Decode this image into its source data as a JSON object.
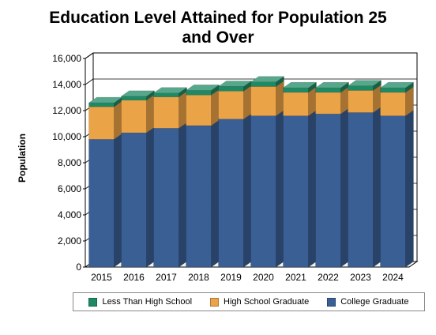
{
  "chart_data": {
    "type": "bar",
    "stacked": true,
    "three_d": true,
    "title_line1": "Education Level Attained for Population 25",
    "title_line2": "and Over",
    "xlabel": "",
    "ylabel": "Population",
    "ylim": [
      0,
      16000
    ],
    "yticks": [
      0,
      2000,
      4000,
      6000,
      8000,
      10000,
      12000,
      14000,
      16000
    ],
    "ytick_labels": [
      "0",
      "2,000",
      "4,000",
      "6,000",
      "8,000",
      "10,000",
      "12,000",
      "14,000",
      "16,000"
    ],
    "grid": true,
    "legend_position": "bottom",
    "categories": [
      "2015",
      "2016",
      "2017",
      "2018",
      "2019",
      "2020",
      "2021",
      "2022",
      "2023",
      "2024"
    ],
    "series": [
      {
        "name": "College Graduate",
        "color": "#3a5f95",
        "values": [
          9800,
          10300,
          10650,
          10850,
          11350,
          11600,
          11600,
          11750,
          11850,
          11600
        ]
      },
      {
        "name": "High School Graduate",
        "color": "#eba348",
        "values": [
          2500,
          2500,
          2400,
          2350,
          2150,
          2250,
          1800,
          1650,
          1700,
          1800
        ]
      },
      {
        "name": "Less Than High School",
        "color": "#1e8a64",
        "values": [
          300,
          300,
          300,
          350,
          350,
          350,
          350,
          350,
          350,
          350
        ]
      }
    ]
  },
  "legend": {
    "items": [
      {
        "label": "Less Than High School",
        "color": "#1e8a64"
      },
      {
        "label": "High School Graduate",
        "color": "#eba348"
      },
      {
        "label": "College Graduate",
        "color": "#3a5f95"
      }
    ]
  }
}
